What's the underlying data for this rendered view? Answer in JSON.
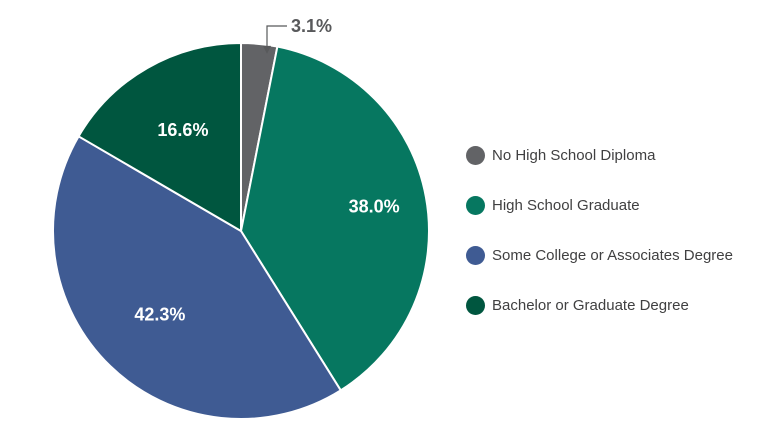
{
  "chart_data": {
    "type": "pie",
    "categories": [
      "No High School Diploma",
      "High School Graduate",
      "Some College or Associates Degree",
      "Bachelor or Graduate Degree"
    ],
    "values": [
      3.1,
      38.0,
      42.3,
      16.6
    ],
    "labels": [
      "3.1%",
      "38.0%",
      "42.3%",
      "16.6%"
    ],
    "colors": [
      "#626366",
      "#067760",
      "#3f5b93",
      "#00563f"
    ],
    "start_angle": "12 o'clock",
    "direction": "clockwise",
    "legend_placement": "right"
  }
}
